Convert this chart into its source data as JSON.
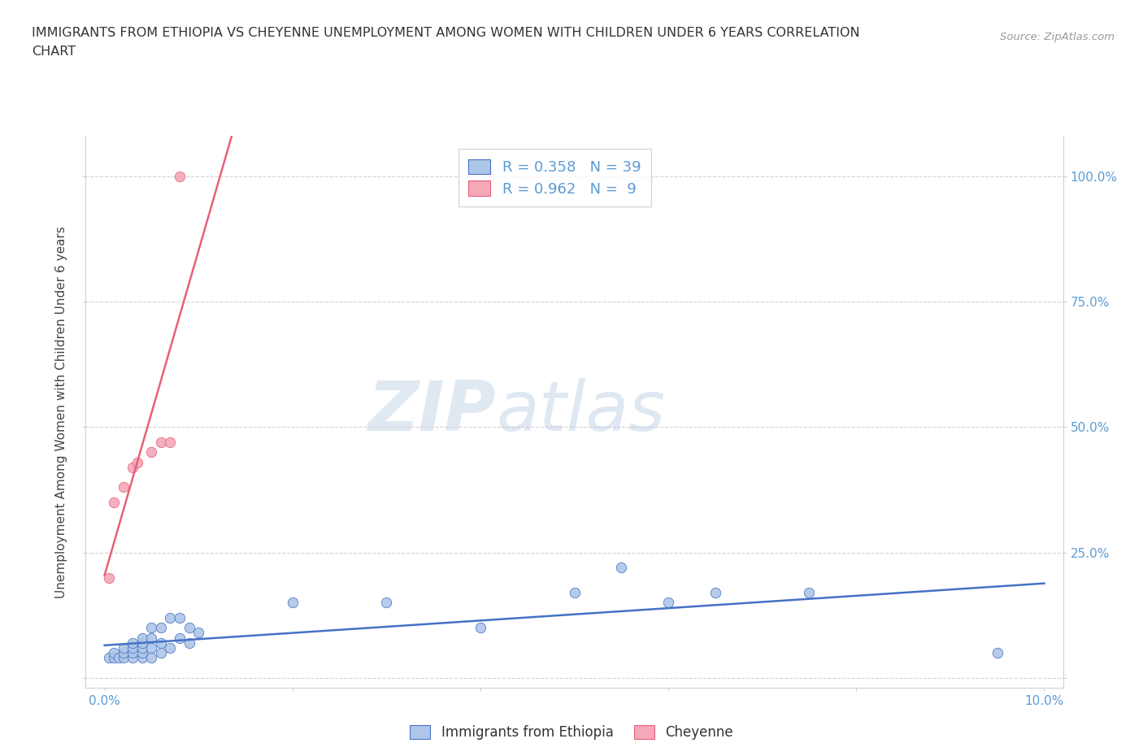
{
  "title_line1": "IMMIGRANTS FROM ETHIOPIA VS CHEYENNE UNEMPLOYMENT AMONG WOMEN WITH CHILDREN UNDER 6 YEARS CORRELATION",
  "title_line2": "CHART",
  "source": "Source: ZipAtlas.com",
  "ylabel": "Unemployment Among Women with Children Under 6 years",
  "xlim": [
    -0.002,
    0.102
  ],
  "ylim": [
    -0.02,
    1.08
  ],
  "xticks": [
    0.0,
    0.02,
    0.04,
    0.06,
    0.08,
    0.1
  ],
  "xtick_labels": [
    "0.0%",
    "",
    "",
    "",
    "",
    "10.0%"
  ],
  "yticks": [
    0.0,
    0.25,
    0.5,
    0.75,
    1.0
  ],
  "ytick_labels": [
    "",
    "25.0%",
    "50.0%",
    "75.0%",
    "100.0%"
  ],
  "R_ethiopia": 0.358,
  "N_ethiopia": 39,
  "R_cheyenne": 0.962,
  "N_cheyenne": 9,
  "ethiopia_color": "#aec6e8",
  "cheyenne_color": "#f4a8b8",
  "ethiopia_line_color": "#4472c4",
  "cheyenne_line_color": "#e8607a",
  "background_color": "#ffffff",
  "grid_color": "#c8c8c8",
  "watermark_zip": "ZIP",
  "watermark_atlas": "atlas",
  "ethiopia_x": [
    0.0005,
    0.001,
    0.001,
    0.0015,
    0.002,
    0.002,
    0.002,
    0.003,
    0.003,
    0.003,
    0.003,
    0.004,
    0.004,
    0.004,
    0.004,
    0.004,
    0.005,
    0.005,
    0.005,
    0.005,
    0.006,
    0.006,
    0.006,
    0.007,
    0.007,
    0.008,
    0.008,
    0.009,
    0.009,
    0.01,
    0.02,
    0.03,
    0.04,
    0.05,
    0.055,
    0.06,
    0.065,
    0.075,
    0.095
  ],
  "ethiopia_y": [
    0.04,
    0.04,
    0.05,
    0.04,
    0.04,
    0.05,
    0.06,
    0.04,
    0.05,
    0.06,
    0.07,
    0.04,
    0.05,
    0.06,
    0.07,
    0.08,
    0.04,
    0.06,
    0.08,
    0.1,
    0.05,
    0.07,
    0.1,
    0.06,
    0.12,
    0.08,
    0.12,
    0.07,
    0.1,
    0.09,
    0.15,
    0.15,
    0.1,
    0.17,
    0.22,
    0.15,
    0.17,
    0.17,
    0.05
  ],
  "cheyenne_x": [
    0.0005,
    0.001,
    0.002,
    0.003,
    0.0035,
    0.005,
    0.006,
    0.007,
    0.008
  ],
  "cheyenne_y": [
    0.2,
    0.35,
    0.38,
    0.42,
    0.43,
    0.45,
    0.47,
    0.47,
    1.0
  ]
}
